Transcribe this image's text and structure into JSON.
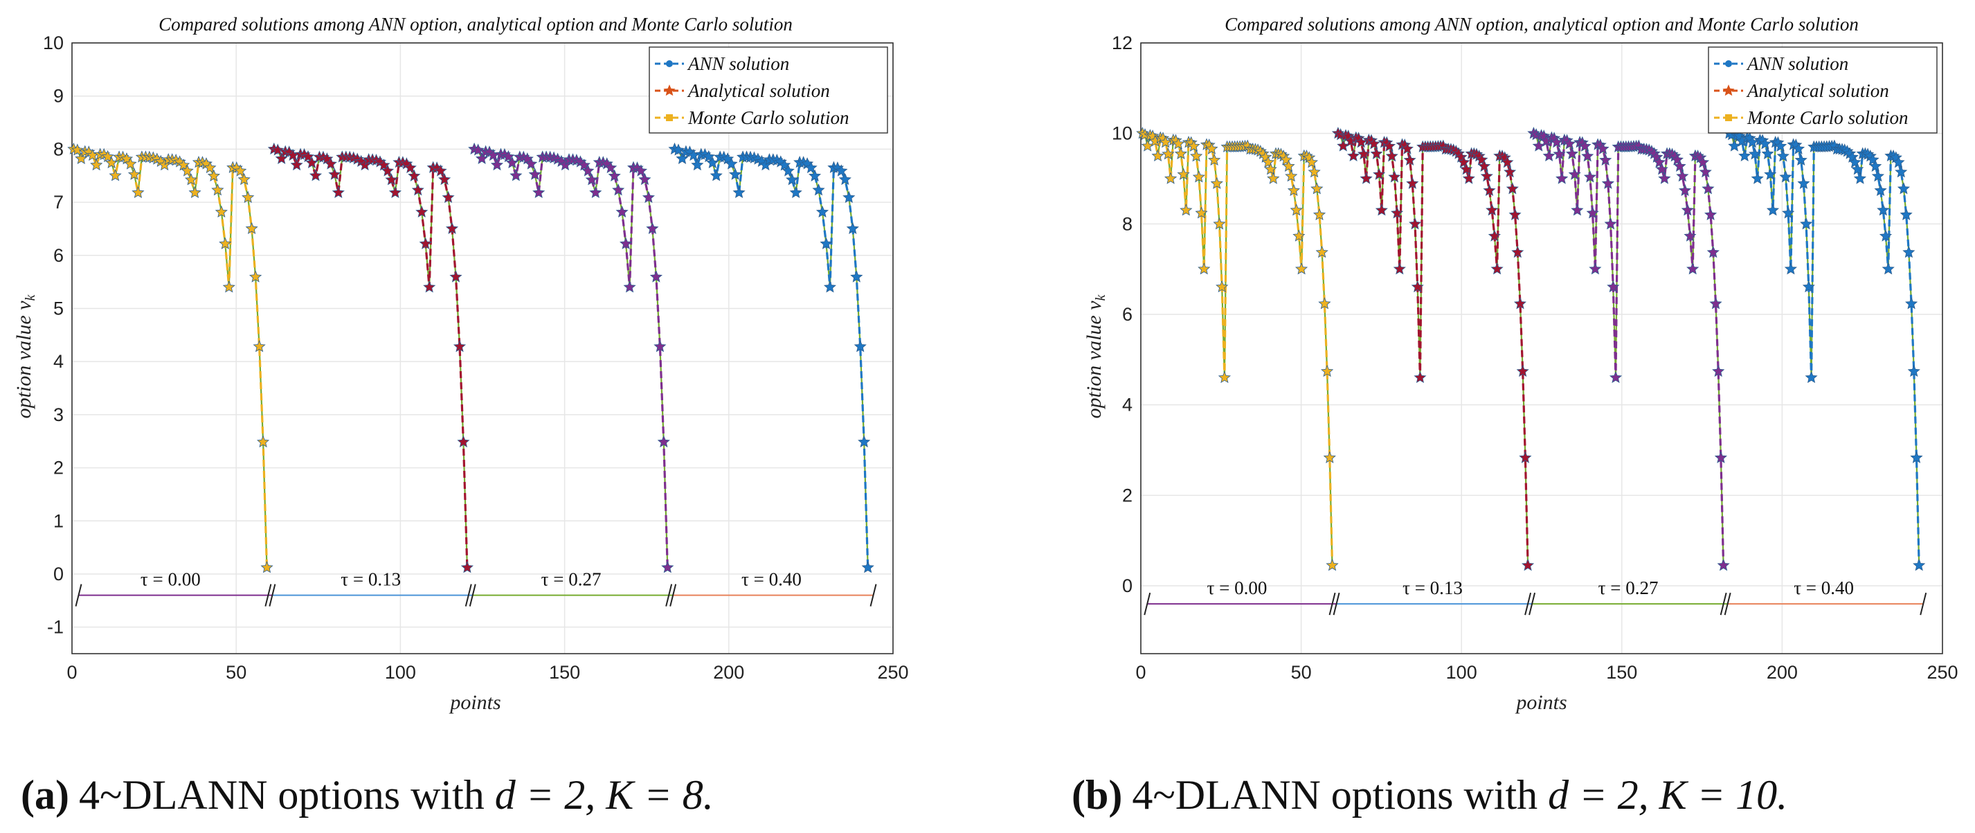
{
  "colors": {
    "ann": "#1f77c4",
    "analytical": "#d95319",
    "monte_carlo": "#edb120",
    "purple": "#7e2f8e",
    "green": "#77ac30",
    "darkred": "#a2142f",
    "tau_lines": [
      "#7e2f8e",
      "#4c94d8",
      "#77ac30",
      "#e8825a"
    ]
  },
  "chart_data": [
    {
      "type": "line",
      "title": "Compared solutions among ANN option, analytical option and Monte Carlo solution",
      "xlabel": "points",
      "ylabel": "option value v_k",
      "xlim": [
        0,
        250
      ],
      "ylim": [
        -1.5,
        10
      ],
      "xticks": [
        "0",
        "50",
        "100",
        "150",
        "200",
        "250"
      ],
      "yticks": [
        "-1",
        "0",
        "1",
        "2",
        "3",
        "4",
        "5",
        "6",
        "7",
        "8",
        "9",
        "10"
      ],
      "grid": true,
      "legend_position": "top-right",
      "legend": [
        "ANN solution",
        "Analytical solution",
        "Monte Carlo solution"
      ],
      "tau_labels": [
        "τ = 0.00",
        "τ = 0.13",
        "τ = 0.27",
        "τ = 0.40"
      ],
      "tau_line_y": -0.4,
      "K": 8,
      "segment_starts": [
        0,
        61,
        122,
        183
      ],
      "template": [
        8.0,
        7.98,
        7.95,
        7.9,
        7.82,
        7.7,
        7.5,
        7.18,
        6.5,
        5.4,
        3.4,
        0.12
      ],
      "top_values": [
        8.0,
        7.95,
        7.9,
        7.85,
        7.85,
        7.8,
        7.75,
        7.65
      ],
      "segment_colors": [
        "monte_carlo",
        "darkred",
        "purple",
        "ann"
      ],
      "caption": {
        "label": "(a)",
        "text": "4~DLANN options with ",
        "math": "d = 2, K = 8."
      }
    },
    {
      "type": "line",
      "title": "Compared solutions among ANN option, analytical option and Monte Carlo solution",
      "xlabel": "points",
      "ylabel": "option value v_k",
      "xlim": [
        0,
        250
      ],
      "ylim": [
        -1.5,
        12
      ],
      "xticks": [
        "0",
        "50",
        "100",
        "150",
        "200",
        "250"
      ],
      "yticks": [
        "0",
        "2",
        "4",
        "6",
        "8",
        "10",
        "12"
      ],
      "grid": true,
      "legend_position": "top-right",
      "legend": [
        "ANN solution",
        "Analytical solution",
        "Monte Carlo solution"
      ],
      "tau_labels": [
        "τ = 0.00",
        "τ = 0.13",
        "τ = 0.27",
        "τ = 0.40"
      ],
      "tau_line_y": -0.4,
      "K": 10,
      "segment_starts": [
        0,
        61,
        122,
        183
      ],
      "template": [
        10.0,
        9.97,
        9.93,
        9.85,
        9.72,
        9.5,
        9.0,
        8.3,
        7.0,
        4.6,
        0.45
      ],
      "top_values": [
        10.0,
        9.95,
        9.9,
        9.85,
        9.8,
        9.75,
        9.7,
        9.65,
        9.55,
        9.5
      ],
      "segment_colors": [
        "monte_carlo",
        "darkred",
        "purple",
        "ann"
      ],
      "caption": {
        "label": "(b)",
        "text": "4~DLANN options with ",
        "math": "d = 2, K = 10."
      }
    }
  ]
}
